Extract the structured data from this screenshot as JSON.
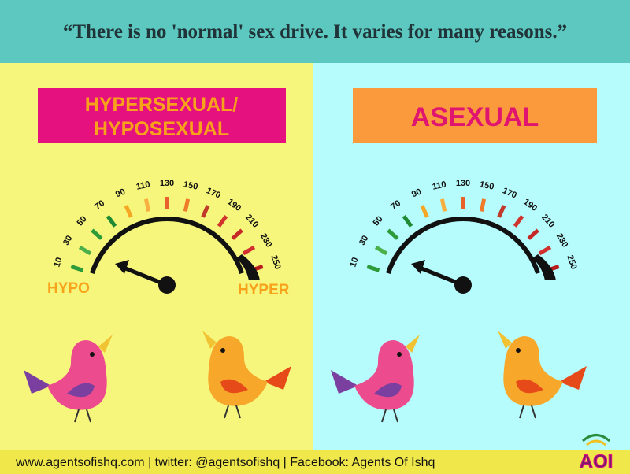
{
  "header": {
    "quote": "“There is no 'normal' sex drive. It varies for many reasons.”"
  },
  "panels": [
    {
      "title_lines": [
        "HYPERSEXUAL/",
        "HYPOSEXUAL"
      ],
      "gauge": {
        "ticks": [
          10,
          30,
          50,
          70,
          90,
          110,
          130,
          150,
          170,
          190,
          210,
          230,
          250
        ],
        "low_label": "HYPO",
        "high_label": "HYPER"
      }
    },
    {
      "title_lines": [
        "ASEXUAL"
      ],
      "gauge": {
        "ticks": [
          10,
          30,
          50,
          70,
          90,
          110,
          130,
          150,
          170,
          190,
          210,
          230,
          250
        ]
      }
    }
  ],
  "footer": {
    "text": "www.agentsofishq.com | twitter: @agentsofishq | Facebook: Agents Of Ishq",
    "logo": "AOI"
  }
}
